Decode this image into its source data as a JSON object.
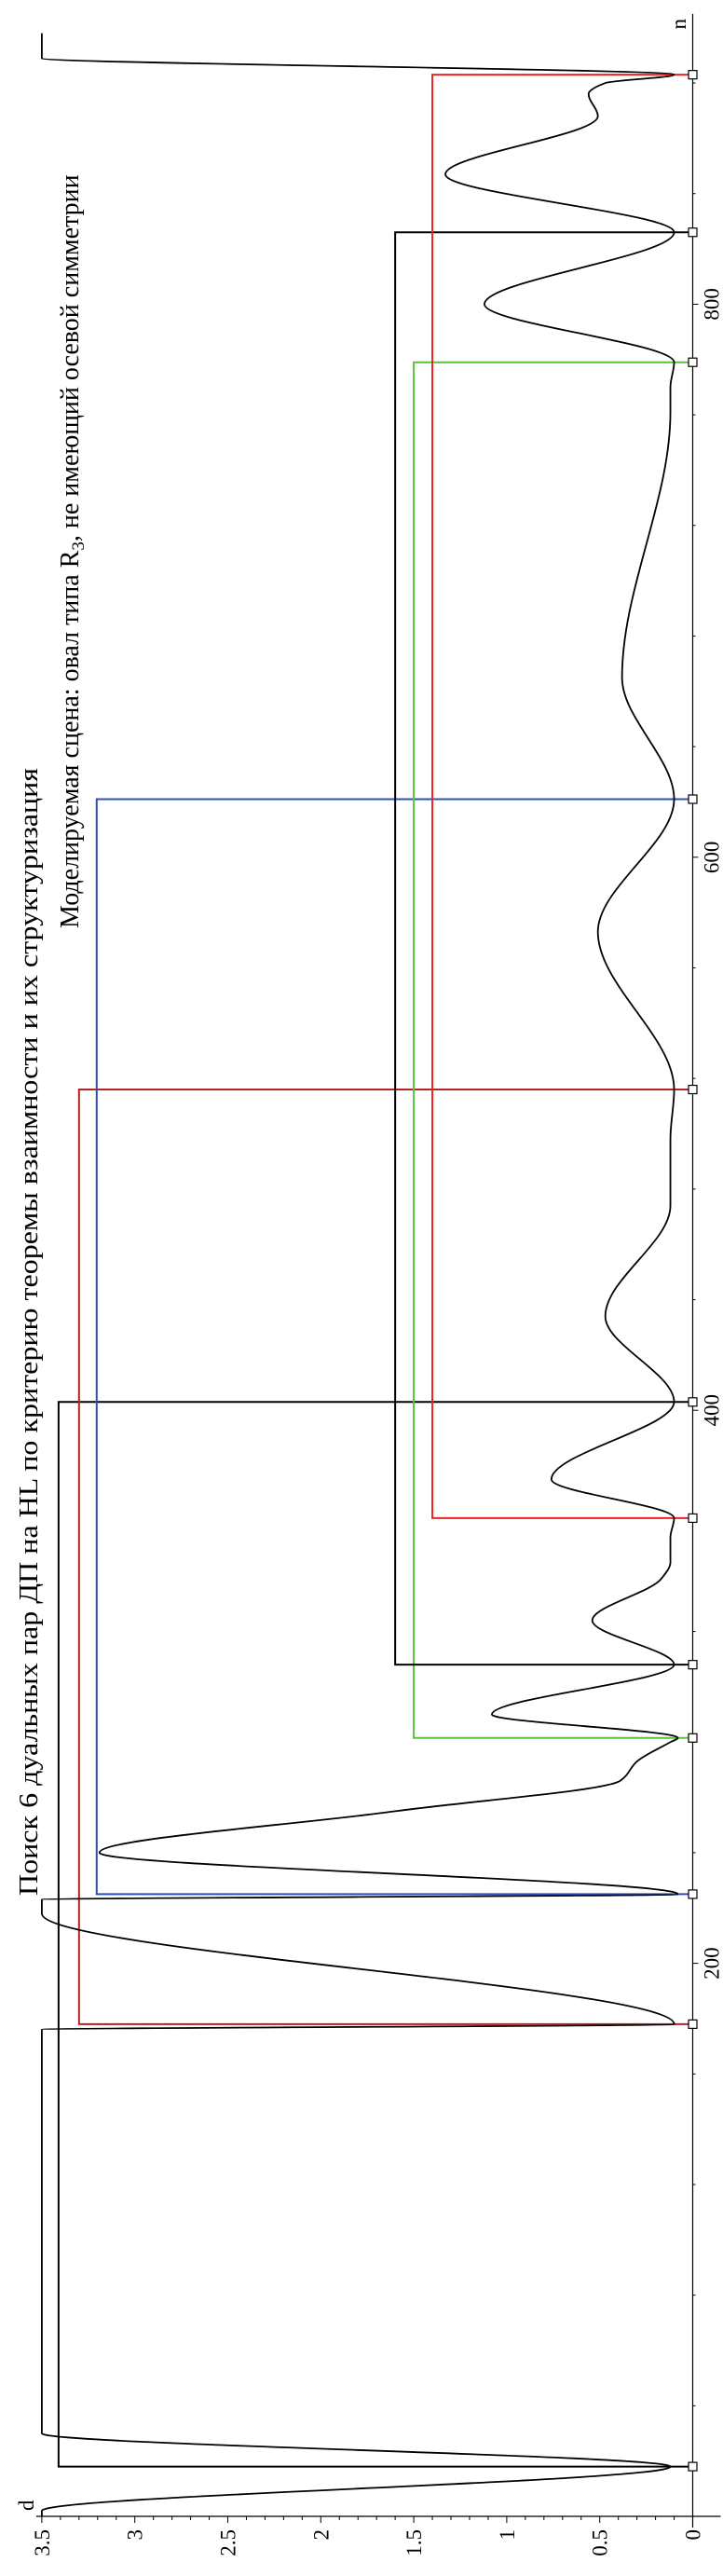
{
  "chart_data": {
    "type": "line",
    "title": "Поиск 6 дуальных пар ДП на HL по критерию теоремы взаимности и их структуризация",
    "subtitle_parts": [
      "Моделируемая сцена: овал типа R",
      "3",
      ", не имеющий осевой симметрии"
    ],
    "xlabel": "n",
    "ylabel": "d",
    "xlim": [
      0,
      905
    ],
    "ylim": [
      0,
      3.5
    ],
    "x_ticks": [
      200,
      400,
      600,
      800
    ],
    "x_tick_labels": [
      "200",
      "400",
      "600",
      "800"
    ],
    "y_ticks": [
      0,
      0.5,
      1,
      1.5,
      2,
      2.5,
      3,
      3.5
    ],
    "y_tick_labels": [
      "0",
      "0.5",
      "1",
      "1.5",
      "2",
      "2.5",
      "3",
      "3.5"
    ],
    "grid": false,
    "orientation": "rotated 90° counter-clockwise",
    "curve": {
      "color": "#000000",
      "points": [
        [
          0,
          3.5
        ],
        [
          2,
          3.5
        ],
        [
          18,
          0.12
        ],
        [
          30,
          3.5
        ],
        [
          176,
          3.5
        ],
        [
          178,
          0.1
        ],
        [
          218,
          3.5
        ],
        [
          223,
          3.5
        ],
        [
          225,
          0.08
        ],
        [
          240,
          3.19
        ],
        [
          255,
          1.6
        ],
        [
          266,
          0.39
        ],
        [
          273,
          0.3
        ],
        [
          280,
          0.12
        ],
        [
          281.5,
          0.08
        ],
        [
          290,
          1.08
        ],
        [
          308,
          0.1
        ],
        [
          324,
          0.54
        ],
        [
          339,
          0.17
        ],
        [
          345,
          0.12
        ],
        [
          354,
          0.12
        ],
        [
          361,
          0.1
        ],
        [
          375,
          0.76
        ],
        [
          403,
          0.1
        ],
        [
          434,
          0.47
        ],
        [
          474,
          0.12
        ],
        [
          498,
          0.12
        ],
        [
          516,
          0.1
        ],
        [
          573,
          0.51
        ],
        [
          621,
          0.1
        ],
        [
          665,
          0.38
        ],
        [
          761,
          0.12
        ],
        [
          770,
          0.12
        ],
        [
          779,
          0.1
        ],
        [
          800,
          1.12
        ],
        [
          826,
          0.1
        ],
        [
          847,
          1.33
        ],
        [
          868,
          0.51
        ],
        [
          876,
          0.56
        ],
        [
          880,
          0.47
        ],
        [
          883,
          0.1
        ],
        [
          889,
          3.5
        ],
        [
          898,
          3.5
        ]
      ]
    },
    "dual_pairs": [
      {
        "n1": 18,
        "n2": 403,
        "level": 3.41,
        "color": "#000000"
      },
      {
        "n1": 178,
        "n2": 516,
        "level": 3.3,
        "color": "#b22222"
      },
      {
        "n1": 225,
        "n2": 621,
        "level": 3.205,
        "color": "#2f4fb5"
      },
      {
        "n1": 281.5,
        "n2": 779,
        "level": 1.5,
        "color": "#5cc040"
      },
      {
        "n1": 308,
        "n2": 826,
        "level": 1.6,
        "color": "#000000"
      },
      {
        "n1": 361,
        "n2": 883,
        "level": 1.4,
        "color": "#ee2222"
      }
    ],
    "markers": [
      18,
      178,
      225,
      281.5,
      308,
      361,
      403,
      516,
      621,
      779,
      826,
      883
    ]
  }
}
